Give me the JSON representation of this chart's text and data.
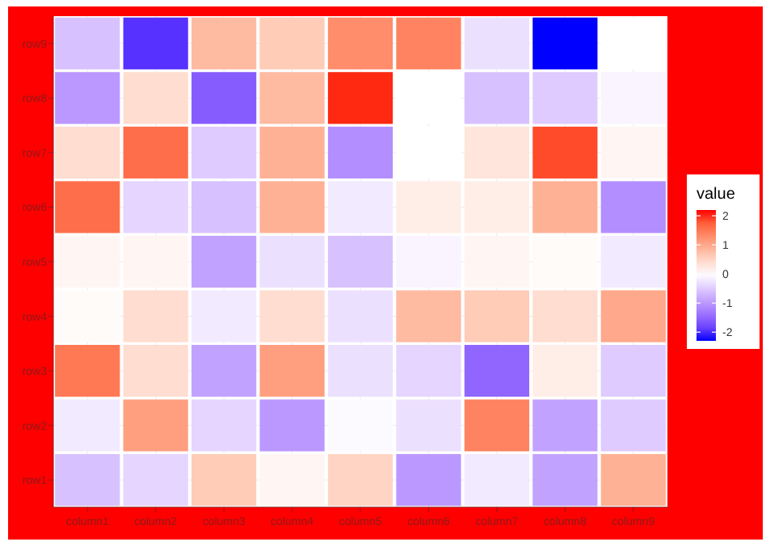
{
  "chart_data": {
    "type": "heatmap",
    "categories": [
      "column1",
      "column2",
      "column3",
      "column4",
      "column5",
      "column6",
      "column7",
      "column8",
      "column9"
    ],
    "y_categories": [
      "row9",
      "row8",
      "row7",
      "row6",
      "row5",
      "row4",
      "row3",
      "row2",
      "row1"
    ],
    "cells": [
      [
        -0.6,
        -2.0,
        0.8,
        0.6,
        1.3,
        1.4,
        -0.3,
        -2.3,
        0.0
      ],
      [
        -1.0,
        0.4,
        -1.6,
        0.8,
        2.1,
        0.0,
        -0.6,
        -0.5,
        -0.1
      ],
      [
        0.4,
        1.6,
        -0.5,
        0.9,
        -1.1,
        0.0,
        0.3,
        1.9,
        0.1
      ],
      [
        1.6,
        -0.4,
        -0.6,
        0.9,
        -0.2,
        0.2,
        0.2,
        0.9,
        -1.1
      ],
      [
        0.1,
        0.1,
        -0.9,
        -0.3,
        -0.6,
        -0.1,
        0.1,
        0.05,
        -0.2
      ],
      [
        0.05,
        0.4,
        -0.2,
        0.4,
        -0.3,
        0.8,
        0.6,
        0.4,
        1.0
      ],
      [
        1.5,
        0.4,
        -0.9,
        1.1,
        -0.3,
        -0.4,
        -1.5,
        0.2,
        -0.5
      ],
      [
        -0.2,
        1.1,
        -0.4,
        -1.0,
        -0.05,
        -0.3,
        1.4,
        -0.9,
        -0.5
      ],
      [
        -0.6,
        -0.4,
        0.6,
        0.1,
        0.5,
        -1.0,
        -0.2,
        -0.9,
        0.9
      ]
    ],
    "clabel": "value",
    "clim": [
      -2.3,
      2.2
    ],
    "cticks": [
      -2,
      -1,
      0,
      1,
      2
    ],
    "grid": true
  }
}
